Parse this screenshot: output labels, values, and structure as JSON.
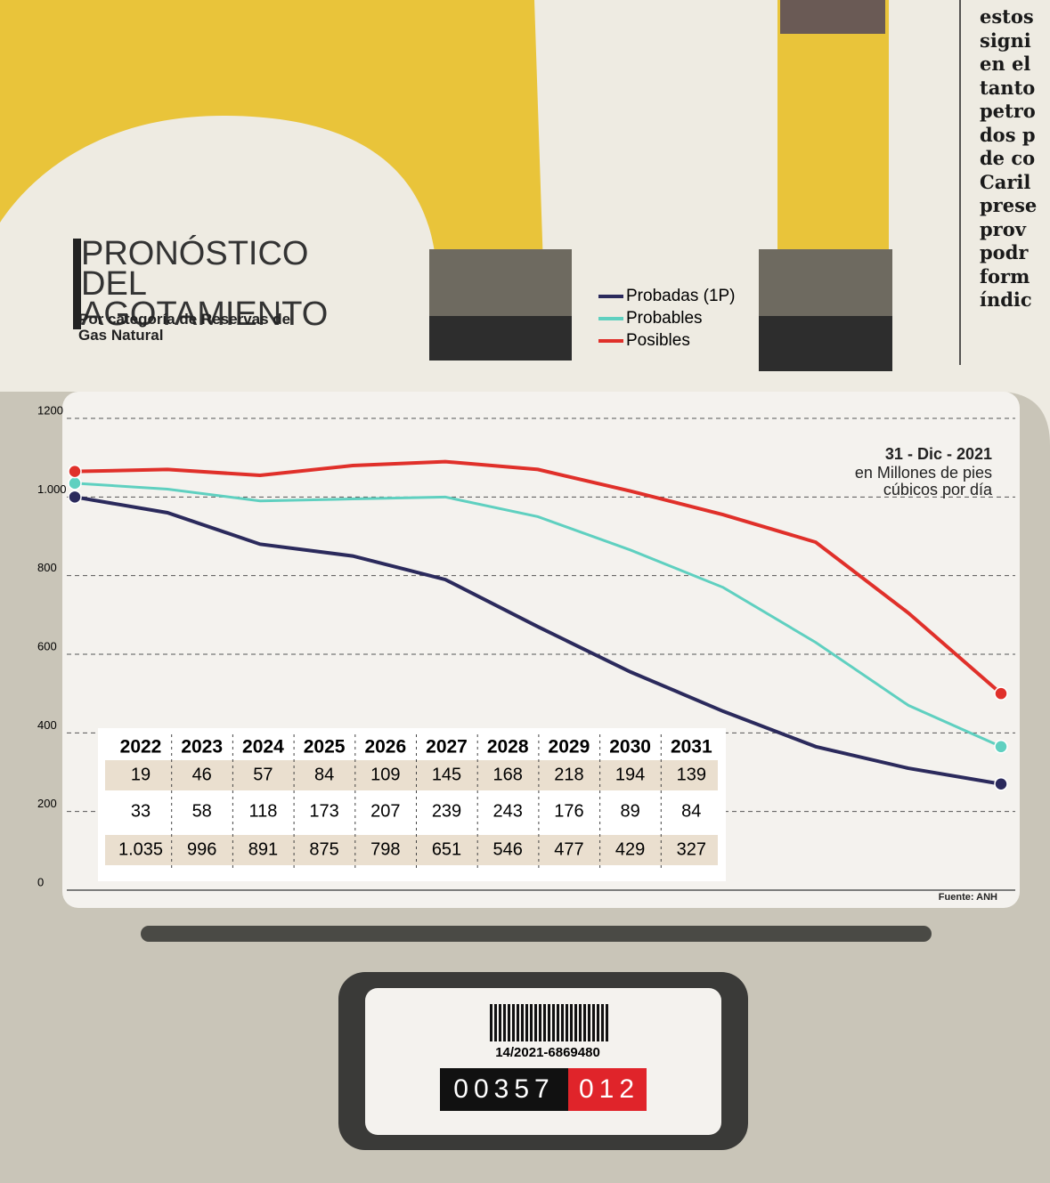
{
  "chart_data": {
    "type": "line",
    "title": "PRONÓSTICO DEL AGOTAMIENTO",
    "subtitle": "Por categoría de Reservas de Gas Natural",
    "date_note": "31 - Dic - 2021",
    "unit_note": "en Millones de pies cúbicos por día",
    "source": "Fuente: ANH",
    "categories": [
      null,
      null,
      null,
      null,
      null,
      null,
      null,
      null,
      null,
      null,
      null
    ],
    "series": [
      {
        "name": "Probadas (1P)",
        "color": "#2b2a5c",
        "values": [
          1000,
          960,
          880,
          850,
          790,
          670,
          555,
          455,
          365,
          310,
          270
        ]
      },
      {
        "name": "Probables",
        "color": "#5fd0c0",
        "values": [
          1035,
          1020,
          990,
          995,
          1000,
          950,
          865,
          770,
          630,
          470,
          365
        ]
      },
      {
        "name": "Posibles",
        "color": "#e0302a",
        "values": [
          1065,
          1070,
          1055,
          1080,
          1090,
          1070,
          1015,
          955,
          885,
          705,
          500
        ]
      }
    ],
    "ylim": [
      0,
      1200
    ],
    "yticks": [
      0,
      200,
      400,
      600,
      800,
      {
        "value": 1000,
        "label": "1.000"
      },
      1200
    ],
    "grid": true
  },
  "table": {
    "header": [
      "2022",
      "2023",
      "2024",
      "2025",
      "2026",
      "2027",
      "2028",
      "2029",
      "2030",
      "2031"
    ],
    "rows": [
      [
        "19",
        "46",
        "57",
        "84",
        "109",
        "145",
        "168",
        "218",
        "194",
        "139"
      ],
      [
        "33",
        "58",
        "118",
        "173",
        "207",
        "239",
        "243",
        "176",
        "89",
        "84"
      ],
      [
        "1.035",
        "996",
        "891",
        "875",
        "798",
        "651",
        "546",
        "477",
        "429",
        "327"
      ]
    ]
  },
  "meter": {
    "code": "14/2021-6869480",
    "counter_black": "00357",
    "counter_red": "012"
  },
  "column": [
    "estos",
    "signi",
    "en el",
    "tanto",
    "petro",
    "dos p",
    "de co",
    "Caril",
    "prese",
    "prov",
    "podr",
    "form",
    "índic"
  ]
}
